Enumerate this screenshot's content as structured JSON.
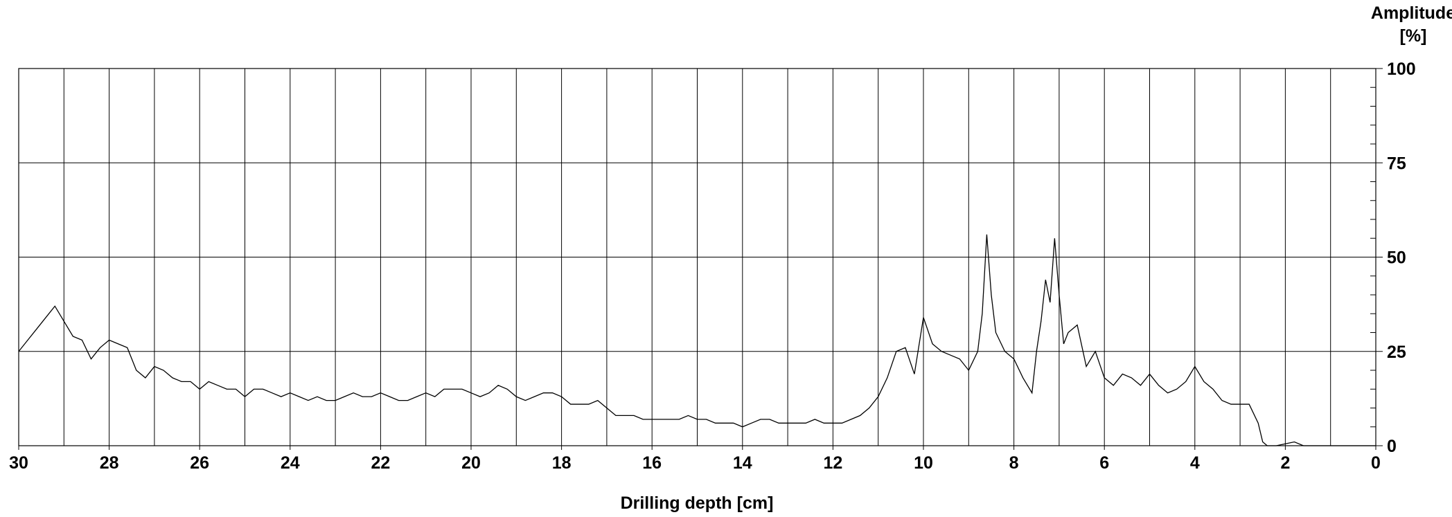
{
  "chart_data": {
    "type": "line",
    "x_label": "Drilling depth [cm]",
    "y_label": [
      "Amplitude",
      "[%]"
    ],
    "xlim": [
      30,
      0
    ],
    "ylim": [
      0,
      100
    ],
    "xticks": [
      30,
      28,
      26,
      24,
      22,
      20,
      18,
      16,
      14,
      12,
      10,
      8,
      6,
      4,
      2,
      0
    ],
    "x_minor_ticks": [
      29,
      27,
      25,
      23,
      21,
      19,
      17,
      15,
      13,
      11,
      9,
      7,
      5,
      3,
      1
    ],
    "yticks": [
      0,
      25,
      50,
      75,
      100
    ],
    "y_minor_ticks": [
      5,
      10,
      15,
      20,
      30,
      35,
      40,
      45,
      55,
      60,
      65,
      70,
      80,
      85,
      90,
      95
    ],
    "grid": true,
    "series": [
      {
        "color": "#000000",
        "x": [
          30,
          29.8,
          29.6,
          29.4,
          29.2,
          29.0,
          28.8,
          28.6,
          28.4,
          28.2,
          28.0,
          27.8,
          27.6,
          27.4,
          27.2,
          27.0,
          26.8,
          26.6,
          26.4,
          26.2,
          26.0,
          25.8,
          25.6,
          25.4,
          25.2,
          25.0,
          24.8,
          24.6,
          24.4,
          24.2,
          24.0,
          23.8,
          23.6,
          23.4,
          23.2,
          23.0,
          22.8,
          22.6,
          22.4,
          22.2,
          22.0,
          21.8,
          21.6,
          21.4,
          21.2,
          21.0,
          20.8,
          20.6,
          20.4,
          20.2,
          20.0,
          19.8,
          19.6,
          19.4,
          19.2,
          19.0,
          18.8,
          18.6,
          18.4,
          18.2,
          18.0,
          17.8,
          17.6,
          17.4,
          17.2,
          17.0,
          16.8,
          16.6,
          16.4,
          16.2,
          16.0,
          15.8,
          15.6,
          15.4,
          15.2,
          15.0,
          14.8,
          14.6,
          14.4,
          14.2,
          14.0,
          13.8,
          13.6,
          13.4,
          13.2,
          13.0,
          12.8,
          12.6,
          12.4,
          12.2,
          12.0,
          11.8,
          11.6,
          11.4,
          11.2,
          11.0,
          10.8,
          10.6,
          10.4,
          10.2,
          10.0,
          9.8,
          9.6,
          9.4,
          9.2,
          9.0,
          8.8,
          8.7,
          8.6,
          8.5,
          8.4,
          8.2,
          8.0,
          7.8,
          7.6,
          7.5,
          7.4,
          7.3,
          7.2,
          7.1,
          7.0,
          6.9,
          6.8,
          6.6,
          6.4,
          6.2,
          6.0,
          5.8,
          5.6,
          5.4,
          5.2,
          5.0,
          4.8,
          4.6,
          4.4,
          4.2,
          4.0,
          3.8,
          3.6,
          3.4,
          3.2,
          3.0,
          2.8,
          2.6,
          2.5,
          2.4,
          2.2,
          2.0,
          1.8,
          1.6,
          1.0,
          0
        ],
        "values": [
          25,
          28,
          31,
          34,
          37,
          33,
          29,
          28,
          23,
          26,
          28,
          27,
          26,
          20,
          18,
          21,
          20,
          18,
          17,
          17,
          15,
          17,
          16,
          15,
          15,
          13,
          15,
          15,
          14,
          13,
          14,
          13,
          12,
          13,
          12,
          12,
          13,
          14,
          13,
          13,
          14,
          13,
          12,
          12,
          13,
          14,
          13,
          15,
          15,
          15,
          14,
          13,
          14,
          16,
          15,
          13,
          12,
          13,
          14,
          14,
          13,
          11,
          11,
          11,
          12,
          10,
          8,
          8,
          8,
          7,
          7,
          7,
          7,
          7,
          8,
          7,
          7,
          6,
          6,
          6,
          5,
          6,
          7,
          7,
          6,
          6,
          6,
          6,
          7,
          6,
          6,
          6,
          7,
          8,
          10,
          13,
          18,
          25,
          26,
          19,
          34,
          27,
          25,
          24,
          23,
          20,
          25,
          35,
          56,
          40,
          30,
          25,
          23,
          18,
          14,
          25,
          33,
          44,
          38,
          55,
          40,
          27,
          30,
          32,
          21,
          25,
          18,
          16,
          19,
          18,
          16,
          19,
          16,
          14,
          15,
          17,
          21,
          17,
          15,
          12,
          11,
          11,
          11,
          6,
          1,
          0,
          0,
          0.5,
          1,
          0,
          0,
          0
        ]
      }
    ]
  }
}
